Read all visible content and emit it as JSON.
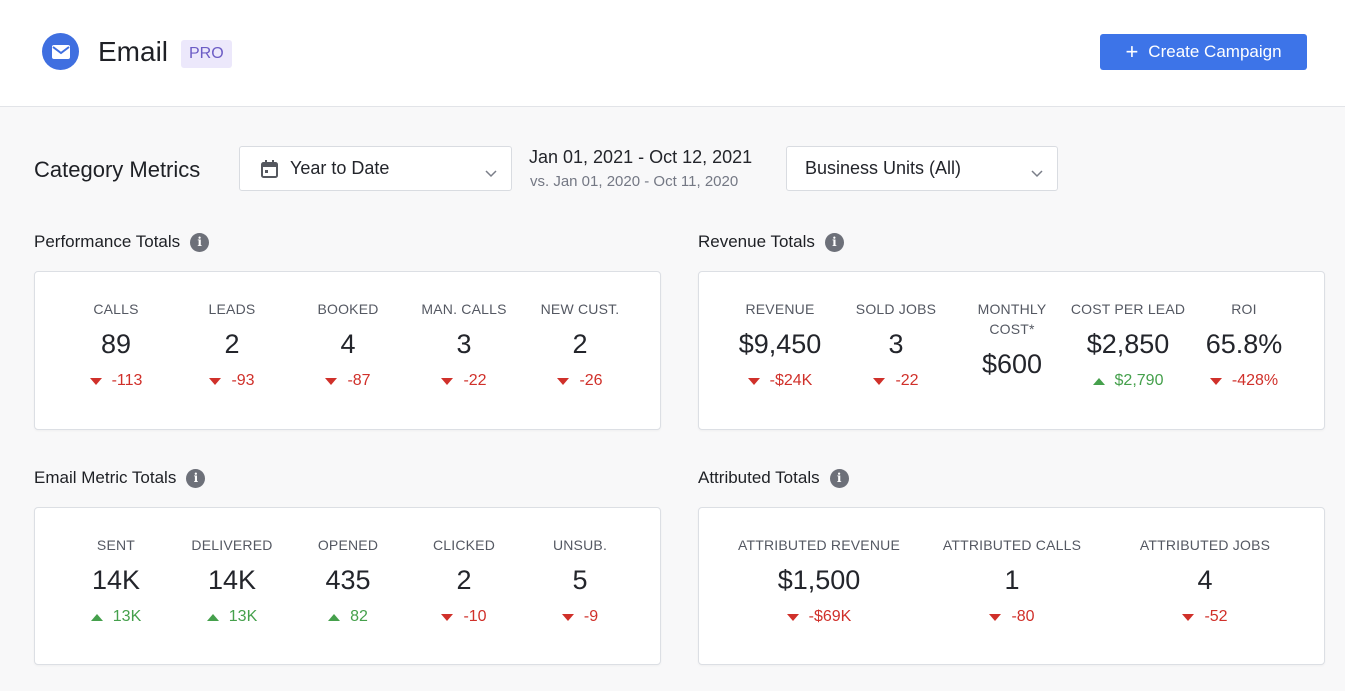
{
  "header": {
    "app_title": "Email",
    "badge": "PRO",
    "create_button": "Create Campaign"
  },
  "filters": {
    "section_title": "Category Metrics",
    "period": "Year to Date",
    "date_range": "Jan 01, 2021 - Oct 12, 2021",
    "date_compare": "vs. Jan 01, 2020 - Oct 11, 2020",
    "business_units": "Business Units (All)"
  },
  "performance": {
    "title": "Performance Totals",
    "metrics": [
      {
        "label": "CALLS",
        "value": "89",
        "delta": "-113",
        "trend": "down"
      },
      {
        "label": "LEADS",
        "value": "2",
        "delta": "-93",
        "trend": "down"
      },
      {
        "label": "BOOKED",
        "value": "4",
        "delta": "-87",
        "trend": "down"
      },
      {
        "label": "MAN. CALLS",
        "value": "3",
        "delta": "-22",
        "trend": "down"
      },
      {
        "label": "NEW CUST.",
        "value": "2",
        "delta": "-26",
        "trend": "down"
      }
    ]
  },
  "revenue": {
    "title": "Revenue Totals",
    "metrics": [
      {
        "label": "REVENUE",
        "value": "$9,450",
        "delta": "-$24K",
        "trend": "down"
      },
      {
        "label": "SOLD JOBS",
        "value": "3",
        "delta": "-22",
        "trend": "down"
      },
      {
        "label": "MONTHLY",
        "label2": "COST*",
        "value": "$600"
      },
      {
        "label": "COST PER LEAD",
        "value": "$2,850",
        "delta": "$2,790",
        "trend": "up"
      },
      {
        "label": "ROI",
        "value": "65.8%",
        "delta": "-428%",
        "trend": "down"
      }
    ]
  },
  "email": {
    "title": "Email Metric Totals",
    "metrics": [
      {
        "label": "SENT",
        "value": "14K",
        "delta": "13K",
        "trend": "up"
      },
      {
        "label": "DELIVERED",
        "value": "14K",
        "delta": "13K",
        "trend": "up"
      },
      {
        "label": "OPENED",
        "value": "435",
        "delta": "82",
        "trend": "up"
      },
      {
        "label": "CLICKED",
        "value": "2",
        "delta": "-10",
        "trend": "down"
      },
      {
        "label": "UNSUB.",
        "value": "5",
        "delta": "-9",
        "trend": "down"
      }
    ]
  },
  "attributed": {
    "title": "Attributed Totals",
    "metrics": [
      {
        "label": "ATTRIBUTED REVENUE",
        "value": "$1,500",
        "delta": "-$69K",
        "trend": "down"
      },
      {
        "label": "ATTRIBUTED CALLS",
        "value": "1",
        "delta": "-80",
        "trend": "down"
      },
      {
        "label": "ATTRIBUTED JOBS",
        "value": "4",
        "delta": "-52",
        "trend": "down"
      }
    ]
  },
  "colors": {
    "accent": "#3d74e8",
    "logo": "#3f6fe0",
    "down": "#d0302a",
    "up": "#45a04c",
    "badge_bg": "#ece8fb",
    "badge_text": "#6c5cc5"
  },
  "icons": {
    "logo": "envelope-icon",
    "create": "plus-icon",
    "period": "calendar-icon",
    "dropdown": "chevron-down-icon",
    "info": "info-icon",
    "trend_down": "triangle-down-icon",
    "trend_up": "triangle-up-icon"
  }
}
